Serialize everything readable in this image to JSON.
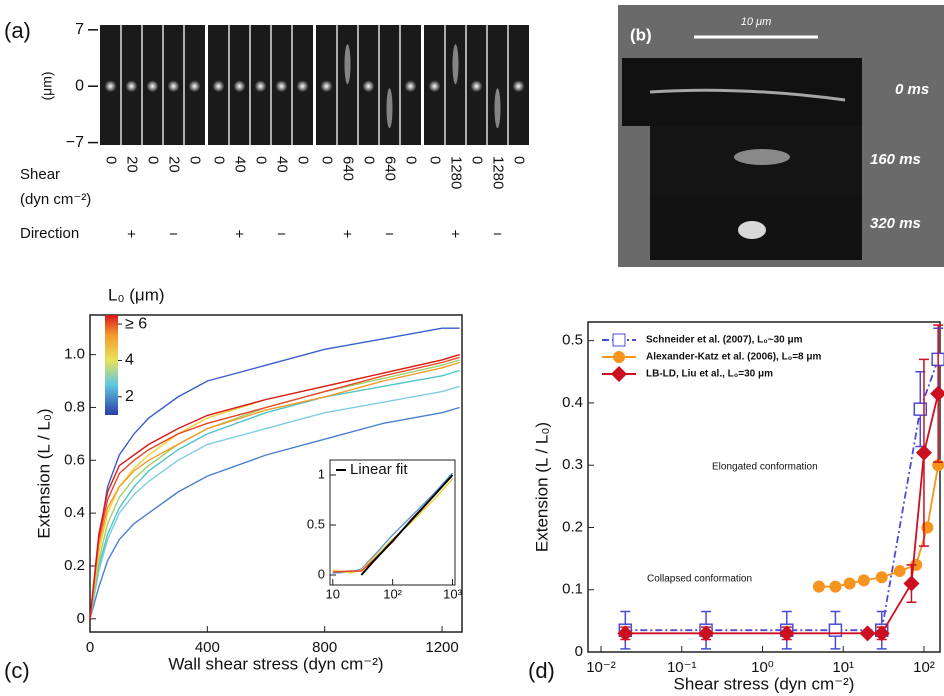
{
  "panel_a": {
    "label": "(a)",
    "unit": "(μm)",
    "ylim": [
      -7.3,
      7.6
    ],
    "yticks": [
      7,
      0,
      {
        "value": -7,
        "label": "−7"
      }
    ],
    "shear_label": "Shear",
    "shear_unit": "(dyn cm⁻²)",
    "direction_label": "Direction",
    "groups": [
      {
        "shear": [
          0,
          20,
          0,
          20,
          0
        ],
        "direction": [
          null,
          "+",
          null,
          "−",
          null
        ]
      },
      {
        "shear": [
          0,
          40,
          0,
          40,
          0
        ],
        "direction": [
          null,
          "+",
          null,
          "−",
          null
        ]
      },
      {
        "shear": [
          0,
          640,
          0,
          640,
          0
        ],
        "direction": [
          null,
          "+",
          null,
          "−",
          null
        ]
      },
      {
        "shear": [
          0,
          1280,
          0,
          1280,
          0
        ],
        "direction": [
          null,
          "+",
          null,
          "−",
          null
        ]
      }
    ]
  },
  "panel_b": {
    "label": "(b)",
    "scale_bar": "10 μm",
    "times": [
      "0 ms",
      "160 ms",
      "320 ms"
    ]
  },
  "chart_data": [
    {
      "type": "line",
      "panel_label": "(c)",
      "x_label": "Wall shear stress (dyn cm⁻²)",
      "y_label": "Extension (L / L₀)",
      "x": [
        0,
        30,
        60,
        100,
        150,
        200,
        300,
        400,
        600,
        800,
        1000,
        1200,
        1260
      ],
      "xlim": [
        0,
        1268
      ],
      "ylim": [
        -0.05,
        1.15
      ],
      "xticks": [
        0,
        400,
        800,
        1200
      ],
      "yticks": [
        0,
        0.2,
        0.4,
        0.6,
        0.8,
        {
          "value": 1,
          "label": "1.0"
        }
      ],
      "colorbar": {
        "label": "L₀ (μm)",
        "lim": [
          1,
          6.5
        ],
        "ticks": [
          {
            "value": 6,
            "label": "≥ 6"
          },
          4,
          2
        ]
      },
      "series": [
        {
          "color": "#3a5fcd",
          "values": [
            0,
            0.3,
            0.5,
            0.62,
            0.7,
            0.76,
            0.84,
            0.9,
            0.96,
            1.02,
            1.06,
            1.1,
            1.1
          ]
        },
        {
          "color": "#4a7fd0",
          "values": [
            0,
            0.12,
            0.22,
            0.3,
            0.36,
            0.4,
            0.48,
            0.54,
            0.62,
            0.68,
            0.74,
            0.78,
            0.8
          ]
        },
        {
          "color": "#7fcde0",
          "values": [
            0,
            0.18,
            0.3,
            0.4,
            0.47,
            0.52,
            0.6,
            0.66,
            0.72,
            0.78,
            0.82,
            0.86,
            0.88
          ]
        },
        {
          "color": "#4fc3c8",
          "values": [
            0,
            0.2,
            0.32,
            0.42,
            0.5,
            0.56,
            0.64,
            0.7,
            0.78,
            0.84,
            0.88,
            0.92,
            0.94
          ]
        },
        {
          "color": "#9fd36a",
          "values": [
            0,
            0.22,
            0.36,
            0.46,
            0.53,
            0.58,
            0.66,
            0.72,
            0.8,
            0.86,
            0.91,
            0.96,
            0.98
          ]
        },
        {
          "color": "#f2d43a",
          "values": [
            0,
            0.25,
            0.4,
            0.5,
            0.57,
            0.62,
            0.7,
            0.76,
            0.83,
            0.88,
            0.93,
            0.98,
            1
          ]
        },
        {
          "color": "#f39a2c",
          "values": [
            0,
            0.28,
            0.42,
            0.5,
            0.56,
            0.6,
            0.66,
            0.72,
            0.79,
            0.84,
            0.9,
            0.95,
            0.97
          ]
        },
        {
          "color": "#e8452a",
          "values": [
            0,
            0.3,
            0.45,
            0.55,
            0.6,
            0.64,
            0.7,
            0.74,
            0.8,
            0.86,
            0.92,
            0.97,
            0.99
          ]
        },
        {
          "color": "#d7191c",
          "values": [
            0,
            0.32,
            0.48,
            0.58,
            0.62,
            0.66,
            0.72,
            0.77,
            0.83,
            0.88,
            0.93,
            0.98,
            1
          ]
        }
      ]
    },
    {
      "type": "line",
      "xscale": "log",
      "x": [
        10,
        20,
        30,
        50,
        100,
        200,
        500,
        1000
      ],
      "xlim": [
        9,
        1100
      ],
      "ylim": [
        -0.1,
        1.15
      ],
      "xticks": [
        10,
        {
          "value": 100,
          "label": "10²"
        },
        {
          "value": 1000,
          "label": "10³"
        }
      ],
      "yticks": [
        0,
        0.5,
        1
      ],
      "series": [
        {
          "color": "#5b9bd5",
          "values": [
            0.02,
            0.03,
            0.06,
            0.2,
            0.4,
            0.58,
            0.82,
            1.02
          ]
        },
        {
          "color": "#f2d43a",
          "values": [
            0.05,
            0.02,
            0.05,
            0.18,
            0.36,
            0.52,
            0.76,
            0.96
          ]
        },
        {
          "color": "#e8452a",
          "values": [
            0.03,
            0.04,
            0.04,
            0.16,
            0.33,
            0.55,
            0.8,
            1
          ]
        },
        {
          "name": "Linear fit",
          "color": "#000000",
          "values": [
            null,
            null,
            0,
            0.15,
            0.34,
            0.54,
            0.8,
            1
          ]
        }
      ]
    },
    {
      "type": "line",
      "panel_label": "(d)",
      "xscale": "log",
      "x_label": "Shear stress (dyn cm⁻²)",
      "y_label": "Extension (L / L₀)",
      "xlim": [
        0.0069,
        158
      ],
      "ylim": [
        0,
        0.53
      ],
      "xticks": [
        {
          "value": 0.01,
          "label": "10⁻²"
        },
        {
          "value": 0.1,
          "label": "10⁻¹"
        },
        {
          "value": 1,
          "label": "10⁰"
        },
        {
          "value": 10,
          "label": "10¹"
        },
        {
          "value": 100,
          "label": "10²"
        }
      ],
      "yticks": [
        0,
        0.1,
        0.2,
        0.3,
        0.4,
        0.5
      ],
      "annotations": [
        "Elongated conformation",
        "Collapsed conformation"
      ],
      "series": [
        {
          "name": "Schneider et al. (2007), L₀~30 μm",
          "color": "#4b4bd8",
          "marker": "square",
          "dash": true,
          "x": [
            0.02,
            0.2,
            2,
            8,
            30,
            90,
            150
          ],
          "values": [
            0.035,
            0.035,
            0.035,
            0.035,
            0.035,
            0.39,
            0.47
          ],
          "errors": [
            0.03,
            0.03,
            0.03,
            0.03,
            0.03,
            0.06,
            0.05
          ]
        },
        {
          "name": "Alexander-Katz et al. (2006), L₀=8 μm",
          "color": "#f7941d",
          "marker": "circle",
          "dash": false,
          "x": [
            5,
            8,
            12,
            18,
            30,
            50,
            80,
            110,
            150
          ],
          "values": [
            0.105,
            0.105,
            0.11,
            0.115,
            0.12,
            0.13,
            0.14,
            0.2,
            0.3
          ]
        },
        {
          "name": "LB-LD, Liu et al., L₀=30 μm",
          "color": "#cc1020",
          "marker": "diamond",
          "dash": false,
          "x": [
            0.02,
            0.2,
            2,
            20,
            30,
            70,
            100,
            150
          ],
          "values": [
            0.03,
            0.03,
            0.03,
            0.03,
            0.03,
            0.11,
            0.32,
            0.415
          ],
          "errors": [
            0.01,
            0.01,
            0.01,
            0,
            0.01,
            0.03,
            0.15,
            0.11
          ]
        }
      ]
    }
  ]
}
